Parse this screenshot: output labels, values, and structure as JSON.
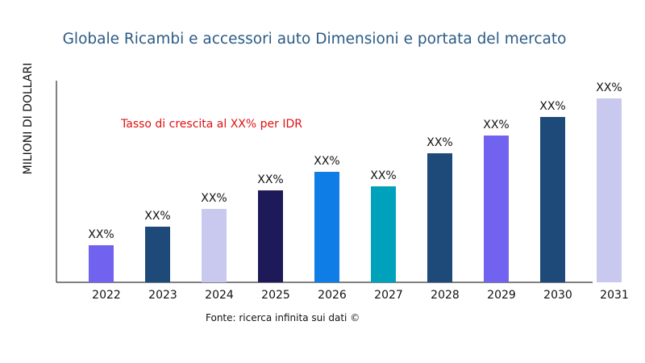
{
  "chart_data": {
    "type": "bar",
    "title": "Globale Ricambi e accessori auto Dimensioni e portata del mercato",
    "ylabel": "MILIONI DI DOLLARI",
    "xlabel": "",
    "annotation": "Tasso di crescita al XX% per IDR",
    "source": "Fonte: ricerca infinita sui dati ©",
    "categories": [
      "2022",
      "2023",
      "2024",
      "2025",
      "2026",
      "2027",
      "2028",
      "2029",
      "2030",
      "2031"
    ],
    "values": [
      46,
      69,
      91,
      114,
      137,
      119,
      160,
      182,
      205,
      228
    ],
    "data_labels": [
      "XX%",
      "XX%",
      "XX%",
      "XX%",
      "XX%",
      "XX%",
      "XX%",
      "XX%",
      "XX%",
      "XX%"
    ],
    "colors": [
      "#7262f0",
      "#1e4a7a",
      "#c9c9f0",
      "#1e1a5a",
      "#0e7de6",
      "#00a2bb",
      "#1e4a7a",
      "#7262f0",
      "#1e4a7a",
      "#c9c9f0"
    ],
    "grid": false,
    "legend": "none"
  }
}
